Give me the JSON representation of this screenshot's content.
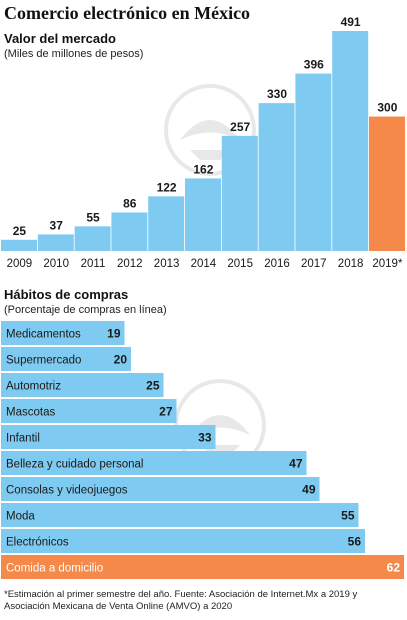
{
  "title": "Comercio electrónico en México",
  "section1": {
    "heading": "Valor del mercado",
    "subheading": "(Miles de millones de pesos)"
  },
  "section2": {
    "heading": "Hábitos de compras",
    "subheading": "(Porcentaje de compras en línea)"
  },
  "footnote": "*Estimación al primer semestre del año. Fuente: Asociación de Internet.Mx a 2019 y Asociación Mexicana de Venta Online (AMVO) a 2020",
  "colors": {
    "blue": "#7fcaf0",
    "orange": "#f4894a",
    "text": "#1a1a1a"
  },
  "chart_data": [
    {
      "type": "bar",
      "title": "Valor del mercado",
      "ylabel": "(Miles de millones de pesos)",
      "categories": [
        "2009",
        "2010",
        "2011",
        "2012",
        "2013",
        "2014",
        "2015",
        "2016",
        "2017",
        "2018",
        "2019*"
      ],
      "values": [
        25,
        37,
        55,
        86,
        122,
        162,
        257,
        330,
        396,
        491,
        300
      ],
      "highlight": "2019*",
      "grid": false
    },
    {
      "type": "bar",
      "orientation": "horizontal",
      "title": "Hábitos de compras",
      "xlabel": "(Porcentaje de compras en línea)",
      "categories": [
        "Medicamentos",
        "Supermercado",
        "Automotriz",
        "Mascotas",
        "Infantil",
        "Belleza y cuidado personal",
        "Consolas y videojuegos",
        "Moda",
        "Electrónicos",
        "Comida a domicilio"
      ],
      "values": [
        19,
        20,
        25,
        27,
        33,
        47,
        49,
        55,
        56,
        62
      ],
      "highlight": "Comida a domicilio",
      "grid": false
    }
  ]
}
